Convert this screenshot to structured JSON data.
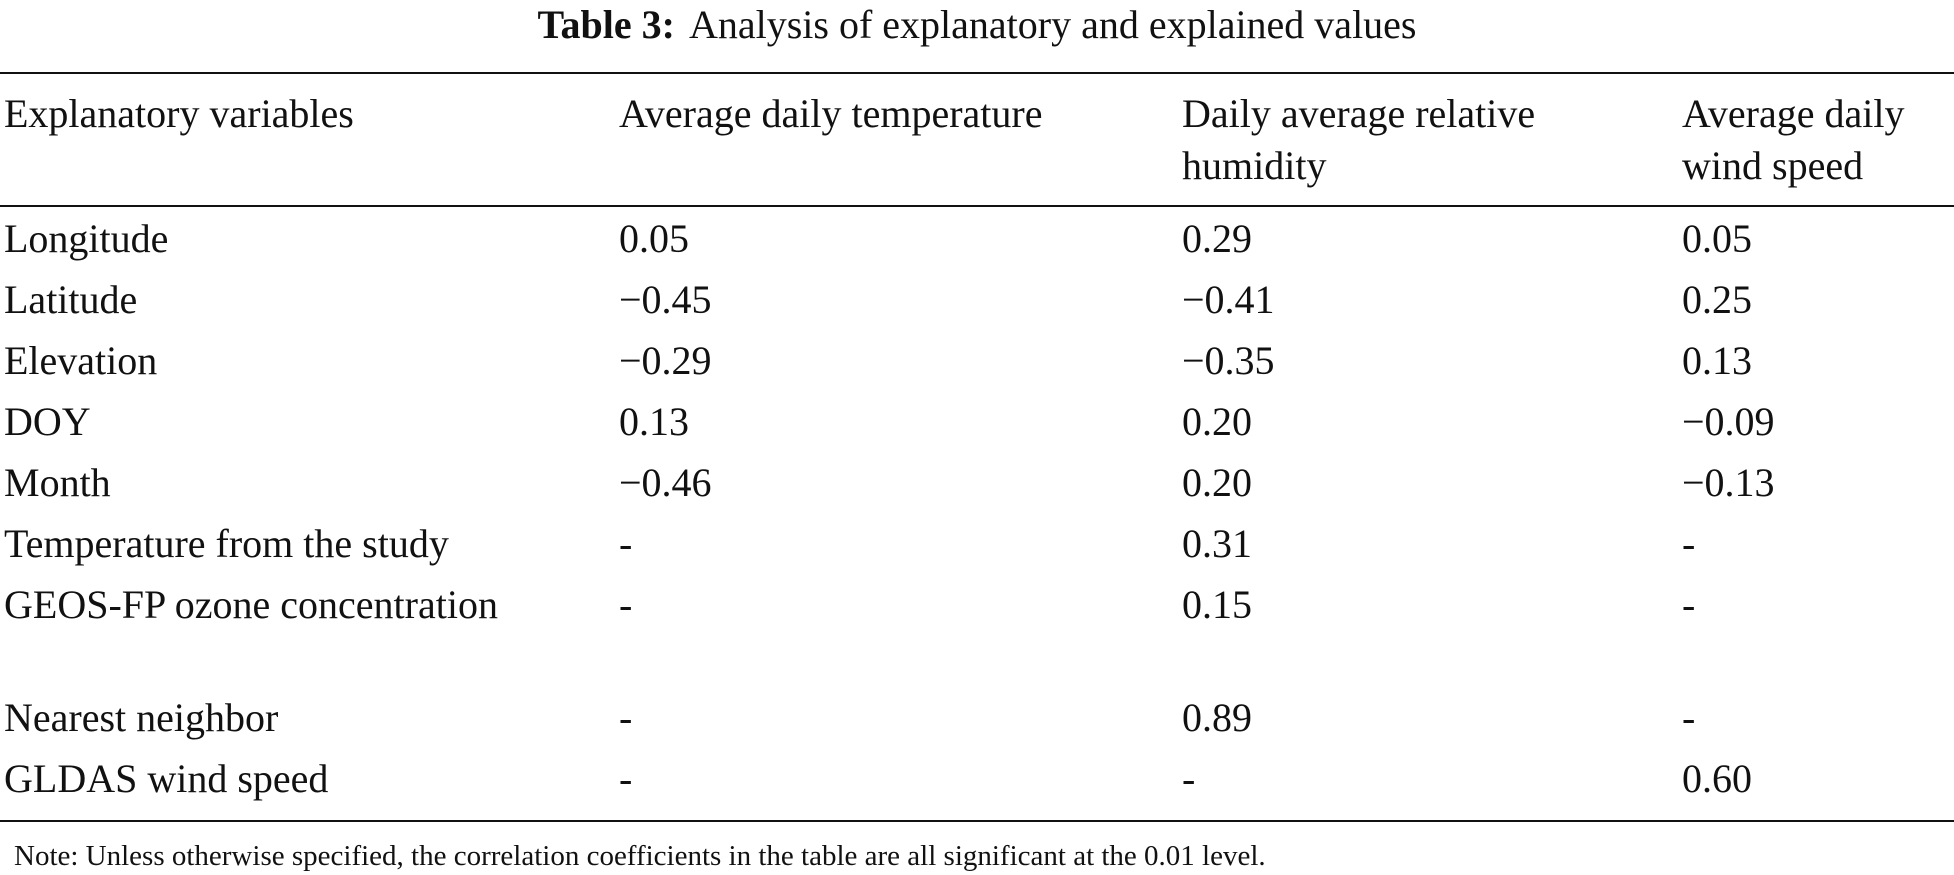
{
  "caption": {
    "label": "Table 3:",
    "title": "Analysis of explanatory and explained values"
  },
  "table": {
    "headers": [
      "Explanatory variables",
      "Average daily temperature",
      "Daily average relative humidity",
      "Average daily wind speed"
    ],
    "rows": [
      [
        "Longitude",
        "0.05",
        "0.29",
        "0.05"
      ],
      [
        "Latitude",
        "−0.45",
        "−0.41",
        "0.25"
      ],
      [
        "Elevation",
        "−0.29",
        "−0.35",
        "0.13"
      ],
      [
        "DOY",
        "0.13",
        "0.20",
        "−0.09"
      ],
      [
        "Month",
        "−0.46",
        "0.20",
        "−0.13"
      ],
      [
        "Temperature from the study",
        "-",
        "0.31",
        "-"
      ],
      [
        "GEOS-FP ozone concentration",
        "-",
        "0.15",
        "-"
      ],
      [
        "Nearest neighbor",
        "-",
        "0.89",
        "-"
      ],
      [
        "GLDAS wind speed",
        "-",
        "-",
        "0.60"
      ]
    ]
  },
  "note": "Note: Unless otherwise specified, the correlation coefficients in the table are all significant at the 0.01 level."
}
